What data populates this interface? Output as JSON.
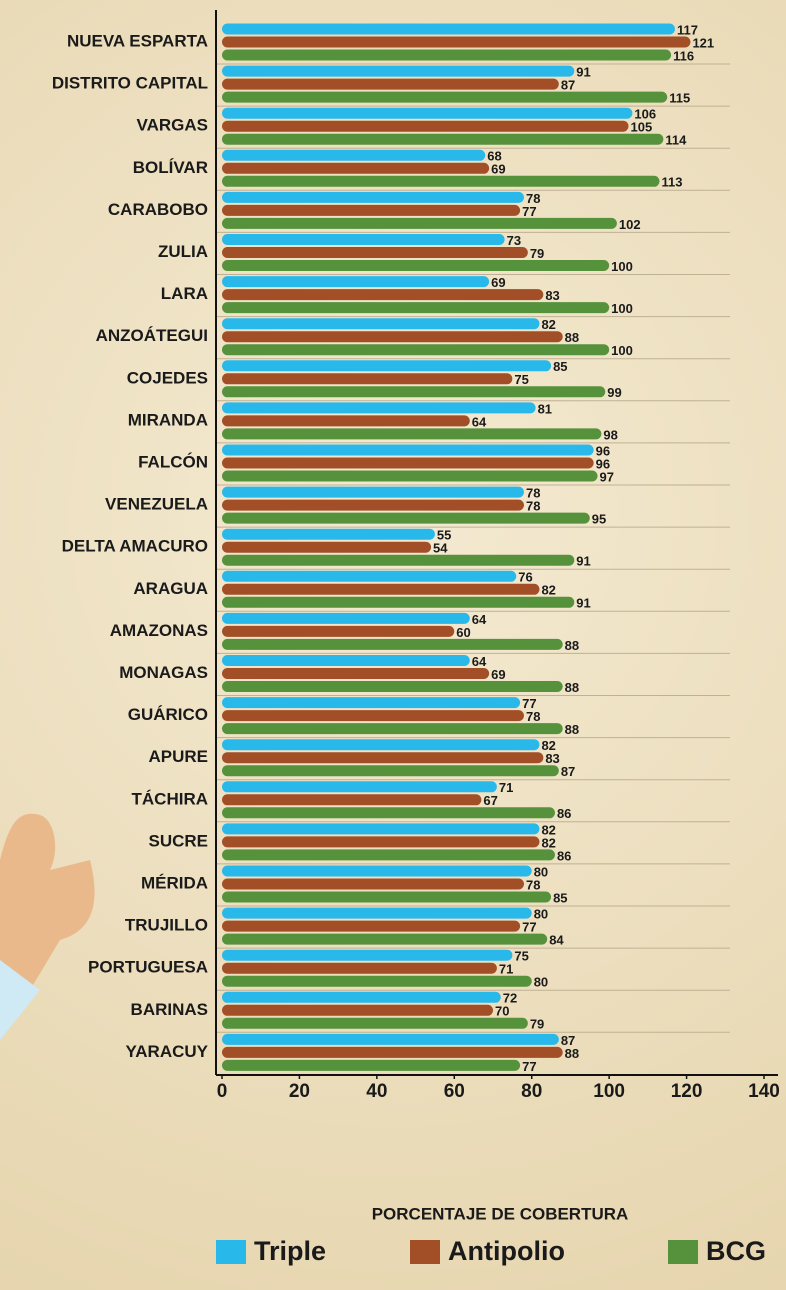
{
  "chart_data": {
    "type": "hbar",
    "x_label": "PORCENTAJE DE COBERTURA",
    "categories": [
      "NUEVA ESPARTA",
      "DISTRITO CAPITAL",
      "VARGAS",
      "BOLÍVAR",
      "CARABOBO",
      "ZULIA",
      "LARA",
      "ANZOÁTEGUI",
      "COJEDES",
      "MIRANDA",
      "FALCÓN",
      "VENEZUELA",
      "DELTA AMACURO",
      "ARAGUA",
      "AMAZONAS",
      "MONAGAS",
      "GUÁRICO",
      "APURE",
      "TÁCHIRA",
      "SUCRE",
      "MÉRIDA",
      "TRUJILLO",
      "PORTUGUESA",
      "BARINAS",
      "YARACUY"
    ],
    "series": [
      {
        "name": "Triple",
        "color": "#29b8ea",
        "values": [
          117,
          91,
          106,
          68,
          78,
          73,
          69,
          82,
          85,
          81,
          96,
          78,
          55,
          76,
          64,
          64,
          77,
          82,
          71,
          82,
          80,
          80,
          75,
          72,
          87
        ]
      },
      {
        "name": "Antipolio",
        "color": "#a24e26",
        "values": [
          121,
          87,
          105,
          69,
          77,
          79,
          83,
          88,
          75,
          64,
          96,
          78,
          54,
          82,
          60,
          69,
          78,
          83,
          67,
          82,
          78,
          77,
          71,
          70,
          88
        ]
      },
      {
        "name": "BCG",
        "color": "#56913c",
        "values": [
          116,
          115,
          114,
          113,
          102,
          100,
          100,
          100,
          99,
          98,
          97,
          95,
          91,
          91,
          88,
          88,
          88,
          87,
          86,
          86,
          85,
          84,
          80,
          79,
          77
        ]
      }
    ],
    "xlim": [
      0,
      140
    ],
    "xticks": [
      0,
      20,
      40,
      60,
      80,
      100,
      120,
      140
    ]
  }
}
